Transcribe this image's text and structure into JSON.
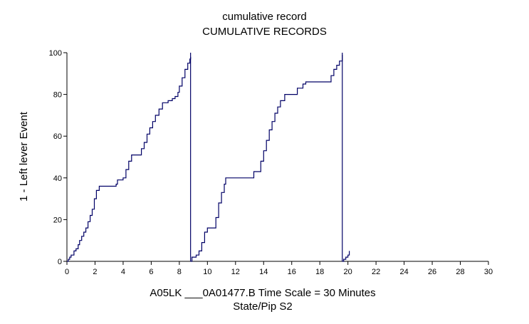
{
  "chart_data": {
    "type": "line",
    "title": "cumulative record",
    "subtitle": "CUMULATIVE RECORDS",
    "ylabel": "1 - Left lever  Event",
    "xlabel": "A05LK ___0A01477.B   Time Scale = 30 Minutes",
    "xlabel2": "State/Pip S2",
    "xlim": [
      0,
      30
    ],
    "ylim": [
      0,
      100
    ],
    "x_ticks": [
      0,
      2,
      4,
      6,
      8,
      10,
      12,
      14,
      16,
      18,
      20,
      22,
      24,
      26,
      28,
      30
    ],
    "y_ticks": [
      0,
      20,
      40,
      60,
      80,
      100
    ],
    "line_color": "#000066",
    "series": [
      {
        "values": [
          [
            0,
            0
          ],
          [
            0.1,
            1
          ],
          [
            0.2,
            2
          ],
          [
            0.3,
            3
          ],
          [
            0.45,
            3
          ],
          [
            0.5,
            5
          ],
          [
            0.65,
            6
          ],
          [
            0.8,
            8
          ],
          [
            0.9,
            10
          ],
          [
            1.05,
            12
          ],
          [
            1.2,
            14
          ],
          [
            1.35,
            16
          ],
          [
            1.5,
            19
          ],
          [
            1.65,
            22
          ],
          [
            1.8,
            25
          ],
          [
            1.95,
            30
          ],
          [
            2.1,
            34
          ],
          [
            2.3,
            36
          ],
          [
            3.4,
            36
          ],
          [
            3.5,
            37
          ],
          [
            3.6,
            39
          ],
          [
            3.8,
            39
          ],
          [
            4.0,
            40
          ],
          [
            4.2,
            44
          ],
          [
            4.4,
            48
          ],
          [
            4.6,
            51
          ],
          [
            5.0,
            51
          ],
          [
            5.3,
            54
          ],
          [
            5.5,
            57
          ],
          [
            5.7,
            61
          ],
          [
            5.9,
            64
          ],
          [
            6.1,
            67
          ],
          [
            6.3,
            70
          ],
          [
            6.55,
            73
          ],
          [
            6.8,
            76
          ],
          [
            7.2,
            77
          ],
          [
            7.5,
            78
          ],
          [
            7.7,
            79
          ],
          [
            7.9,
            81
          ],
          [
            8.0,
            84
          ],
          [
            8.2,
            88
          ],
          [
            8.4,
            92
          ],
          [
            8.6,
            95
          ],
          [
            8.75,
            97
          ],
          [
            8.8,
            98
          ]
        ]
      },
      {
        "values": [
          [
            8.8,
            0
          ],
          [
            8.9,
            2
          ],
          [
            9.2,
            3
          ],
          [
            9.4,
            5
          ],
          [
            9.6,
            9
          ],
          [
            9.8,
            14
          ],
          [
            10.0,
            16
          ],
          [
            10.5,
            16
          ],
          [
            10.6,
            21
          ],
          [
            10.8,
            28
          ],
          [
            11.0,
            33
          ],
          [
            11.2,
            37
          ],
          [
            11.3,
            40
          ],
          [
            13.2,
            40
          ],
          [
            13.3,
            43
          ],
          [
            13.6,
            43
          ],
          [
            13.8,
            48
          ],
          [
            14.0,
            53
          ],
          [
            14.2,
            58
          ],
          [
            14.4,
            63
          ],
          [
            14.6,
            67
          ],
          [
            14.8,
            71
          ],
          [
            15.0,
            74
          ],
          [
            15.2,
            77
          ],
          [
            15.5,
            80
          ],
          [
            16.2,
            80
          ],
          [
            16.4,
            83
          ],
          [
            16.8,
            85
          ],
          [
            17.0,
            86
          ],
          [
            18.6,
            86
          ],
          [
            18.8,
            89
          ],
          [
            19.0,
            92
          ],
          [
            19.2,
            94
          ],
          [
            19.4,
            96
          ],
          [
            19.6,
            99
          ]
        ]
      },
      {
        "values": [
          [
            19.6,
            0
          ],
          [
            19.7,
            1
          ],
          [
            19.85,
            2
          ],
          [
            20.0,
            3
          ],
          [
            20.1,
            5
          ]
        ]
      }
    ],
    "resets": [
      8.8,
      19.6
    ]
  }
}
